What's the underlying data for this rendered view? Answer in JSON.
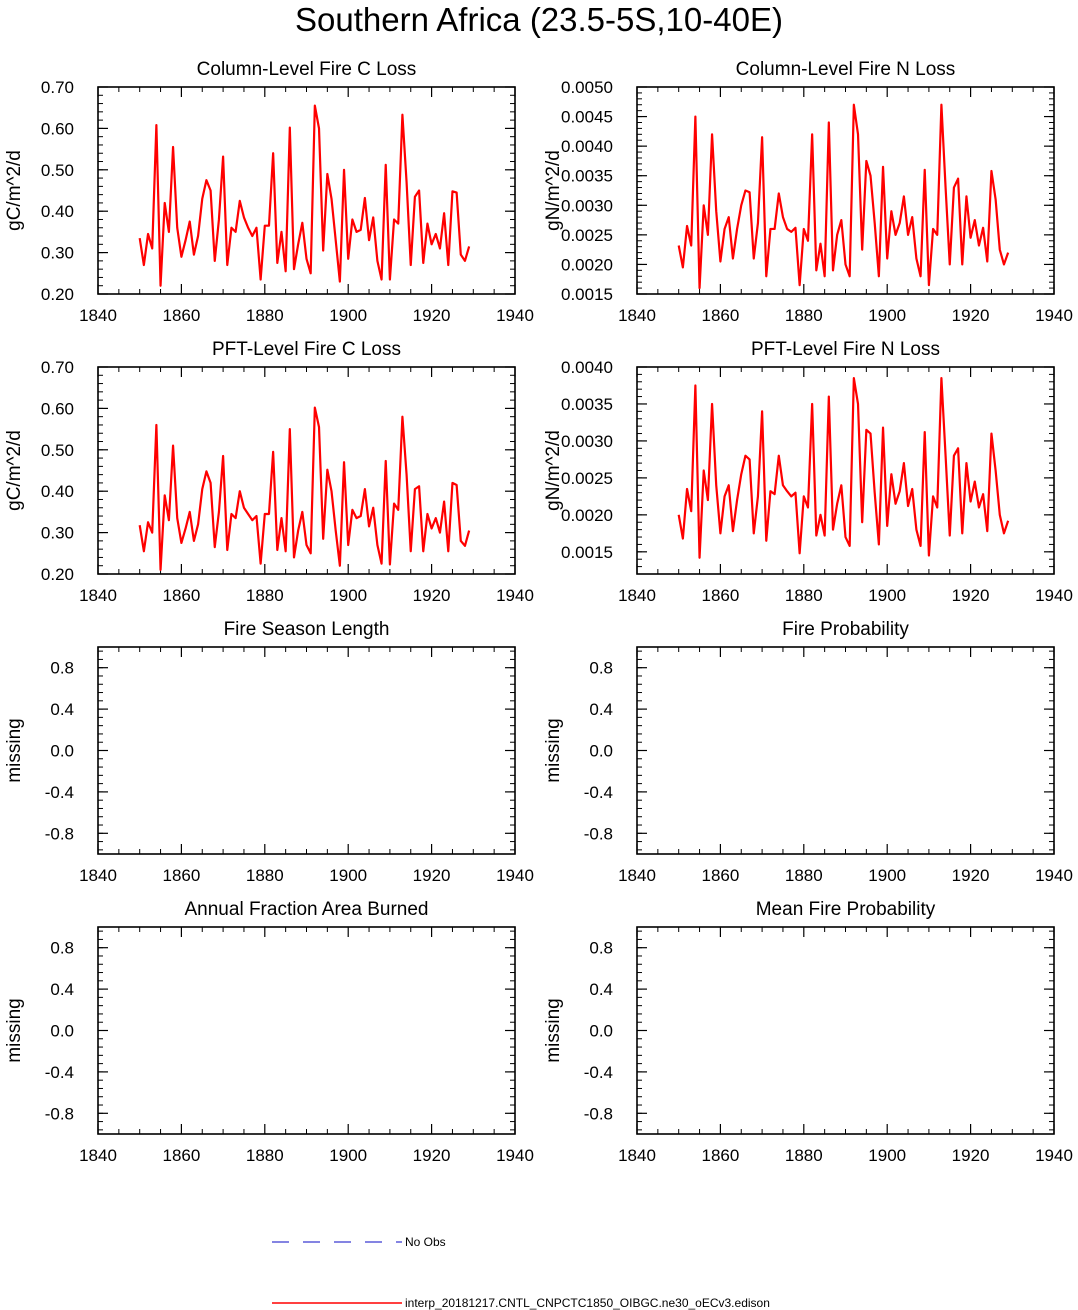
{
  "title": "Southern Africa (23.5-5S,10-40E)",
  "legend": [
    {
      "label": "No Obs",
      "color": "#3b3bd1",
      "style": "dashed"
    },
    {
      "label": "interp_20181217.CNTL_CNPCTC1850_OIBGC.ne30_oECv3.edison",
      "color": "#ff0000",
      "style": "solid"
    }
  ],
  "chart_data": [
    {
      "type": "line",
      "title": "Column-Level Fire C Loss",
      "xlabel": "",
      "ylabel": "gC/m^2/d",
      "xlim": [
        1840,
        1940
      ],
      "ylim": [
        0.2,
        0.7
      ],
      "xticks": [
        1840,
        1860,
        1880,
        1900,
        1920,
        1940
      ],
      "yticks": [
        0.2,
        0.3,
        0.4,
        0.5,
        0.6,
        0.7
      ],
      "yticklabels": [
        "0.20",
        "0.30",
        "0.40",
        "0.50",
        "0.60",
        "0.70"
      ],
      "series": [
        {
          "name": "interp_20181217.CNTL_CNPCTC1850_OIBGC.ne30_oECv3.edison",
          "color": "#ff0000",
          "x_start": 1850,
          "values": [
            0.335,
            0.27,
            0.345,
            0.31,
            0.608,
            0.22,
            0.42,
            0.35,
            0.555,
            0.36,
            0.29,
            0.33,
            0.375,
            0.295,
            0.34,
            0.43,
            0.475,
            0.45,
            0.28,
            0.38,
            0.532,
            0.27,
            0.36,
            0.35,
            0.425,
            0.385,
            0.36,
            0.34,
            0.36,
            0.235,
            0.365,
            0.365,
            0.54,
            0.275,
            0.35,
            0.255,
            0.602,
            0.26,
            0.32,
            0.372,
            0.285,
            0.25,
            0.655,
            0.6,
            0.305,
            0.49,
            0.43,
            0.33,
            0.23,
            0.5,
            0.285,
            0.38,
            0.35,
            0.355,
            0.432,
            0.33,
            0.385,
            0.28,
            0.235,
            0.512,
            0.235,
            0.38,
            0.37,
            0.633,
            0.47,
            0.27,
            0.435,
            0.45,
            0.275,
            0.37,
            0.32,
            0.345,
            0.31,
            0.395,
            0.27,
            0.448,
            0.445,
            0.295,
            0.28,
            0.315
          ]
        }
      ]
    },
    {
      "type": "line",
      "title": "Column-Level Fire N Loss",
      "xlabel": "",
      "ylabel": "gN/m^2/d",
      "xlim": [
        1840,
        1940
      ],
      "ylim": [
        0.0015,
        0.005
      ],
      "xticks": [
        1840,
        1860,
        1880,
        1900,
        1920,
        1940
      ],
      "yticks": [
        0.0015,
        0.002,
        0.0025,
        0.003,
        0.0035,
        0.004,
        0.0045,
        0.005
      ],
      "yticklabels": [
        "0.0015",
        "0.0020",
        "0.0025",
        "0.0030",
        "0.0035",
        "0.0040",
        "0.0045",
        "0.0050"
      ],
      "series": [
        {
          "name": "interp_20181217.CNTL_CNPCTC1850_OIBGC.ne30_oECv3.edison",
          "color": "#ff0000",
          "x_start": 1850,
          "values": [
            0.00232,
            0.00195,
            0.00265,
            0.00232,
            0.0045,
            0.0016,
            0.003,
            0.0025,
            0.0042,
            0.0029,
            0.00205,
            0.0026,
            0.0028,
            0.0021,
            0.0026,
            0.003,
            0.00325,
            0.00322,
            0.0021,
            0.0027,
            0.00415,
            0.0018,
            0.0026,
            0.0026,
            0.0032,
            0.0028,
            0.0026,
            0.00255,
            0.00262,
            0.00165,
            0.0026,
            0.0024,
            0.0042,
            0.0019,
            0.00235,
            0.0018,
            0.0044,
            0.0019,
            0.0025,
            0.00275,
            0.002,
            0.0018,
            0.0047,
            0.0042,
            0.00225,
            0.00375,
            0.0035,
            0.0027,
            0.0018,
            0.00365,
            0.0021,
            0.0029,
            0.0025,
            0.0027,
            0.00315,
            0.0025,
            0.0028,
            0.0021,
            0.0018,
            0.0036,
            0.00165,
            0.0026,
            0.0025,
            0.0047,
            0.0033,
            0.002,
            0.0033,
            0.00345,
            0.002,
            0.00315,
            0.00245,
            0.00275,
            0.00232,
            0.00262,
            0.00205,
            0.00358,
            0.0031,
            0.00225,
            0.002,
            0.0022
          ]
        }
      ]
    },
    {
      "type": "line",
      "title": "PFT-Level Fire C Loss",
      "xlabel": "",
      "ylabel": "gC/m^2/d",
      "xlim": [
        1840,
        1940
      ],
      "ylim": [
        0.2,
        0.7
      ],
      "xticks": [
        1840,
        1860,
        1880,
        1900,
        1920,
        1940
      ],
      "yticks": [
        0.2,
        0.3,
        0.4,
        0.5,
        0.6,
        0.7
      ],
      "yticklabels": [
        "0.20",
        "0.30",
        "0.40",
        "0.50",
        "0.60",
        "0.70"
      ],
      "series": [
        {
          "name": "interp_20181217.CNTL_CNPCTC1850_OIBGC.ne30_oECv3.edison",
          "color": "#ff0000",
          "x_start": 1850,
          "values": [
            0.318,
            0.255,
            0.325,
            0.3,
            0.56,
            0.21,
            0.39,
            0.33,
            0.51,
            0.335,
            0.275,
            0.31,
            0.35,
            0.28,
            0.32,
            0.405,
            0.448,
            0.42,
            0.265,
            0.35,
            0.485,
            0.258,
            0.345,
            0.335,
            0.4,
            0.36,
            0.345,
            0.33,
            0.34,
            0.225,
            0.345,
            0.345,
            0.495,
            0.258,
            0.335,
            0.255,
            0.55,
            0.24,
            0.305,
            0.35,
            0.27,
            0.25,
            0.602,
            0.555,
            0.285,
            0.452,
            0.4,
            0.305,
            0.22,
            0.47,
            0.27,
            0.355,
            0.335,
            0.34,
            0.405,
            0.315,
            0.36,
            0.27,
            0.225,
            0.473,
            0.223,
            0.37,
            0.355,
            0.58,
            0.44,
            0.255,
            0.405,
            0.412,
            0.255,
            0.345,
            0.31,
            0.335,
            0.3,
            0.375,
            0.255,
            0.42,
            0.415,
            0.28,
            0.268,
            0.305
          ]
        }
      ]
    },
    {
      "type": "line",
      "title": "PFT-Level Fire N Loss",
      "xlabel": "",
      "ylabel": "gN/m^2/d",
      "xlim": [
        1840,
        1940
      ],
      "ylim": [
        0.0012,
        0.004
      ],
      "xticks": [
        1840,
        1860,
        1880,
        1900,
        1920,
        1940
      ],
      "yticks": [
        0.0015,
        0.002,
        0.0025,
        0.003,
        0.0035,
        0.004
      ],
      "yticklabels": [
        "0.0015",
        "0.0020",
        "0.0025",
        "0.0030",
        "0.0035",
        "0.0040"
      ],
      "series": [
        {
          "name": "interp_20181217.CNTL_CNPCTC1850_OIBGC.ne30_oECv3.edison",
          "color": "#ff0000",
          "x_start": 1850,
          "values": [
            0.002,
            0.00168,
            0.00235,
            0.00205,
            0.00375,
            0.00142,
            0.0026,
            0.0022,
            0.0035,
            0.0024,
            0.00175,
            0.00225,
            0.0024,
            0.00178,
            0.0022,
            0.00255,
            0.0028,
            0.00275,
            0.00175,
            0.00225,
            0.0034,
            0.00165,
            0.00232,
            0.00228,
            0.0028,
            0.0024,
            0.00232,
            0.00225,
            0.0023,
            0.00148,
            0.00225,
            0.0021,
            0.0035,
            0.00172,
            0.002,
            0.00172,
            0.0036,
            0.0018,
            0.00215,
            0.0024,
            0.0017,
            0.00158,
            0.00385,
            0.0035,
            0.0019,
            0.00315,
            0.0031,
            0.0023,
            0.0016,
            0.00318,
            0.00185,
            0.00255,
            0.00215,
            0.00232,
            0.0027,
            0.00212,
            0.00235,
            0.0018,
            0.00158,
            0.00312,
            0.00145,
            0.00225,
            0.0021,
            0.00385,
            0.0028,
            0.00172,
            0.0028,
            0.0029,
            0.00175,
            0.0027,
            0.00218,
            0.00245,
            0.0021,
            0.00228,
            0.00178,
            0.0031,
            0.0026,
            0.002,
            0.00175,
            0.00192
          ]
        }
      ]
    },
    {
      "type": "line",
      "title": "Fire Season Length",
      "xlabel": "",
      "ylabel": "missing",
      "xlim": [
        1840,
        1940
      ],
      "ylim": [
        -1.0,
        1.0
      ],
      "xticks": [
        1840,
        1860,
        1880,
        1900,
        1920,
        1940
      ],
      "yticks": [
        -0.8,
        -0.4,
        0.0,
        0.4,
        0.8
      ],
      "yticklabels": [
        "-0.8",
        "-0.4",
        "0.0",
        "0.4",
        "0.8"
      ],
      "series": []
    },
    {
      "type": "line",
      "title": "Fire Probability",
      "xlabel": "",
      "ylabel": "missing",
      "xlim": [
        1840,
        1940
      ],
      "ylim": [
        -1.0,
        1.0
      ],
      "xticks": [
        1840,
        1860,
        1880,
        1900,
        1920,
        1940
      ],
      "yticks": [
        -0.8,
        -0.4,
        0.0,
        0.4,
        0.8
      ],
      "yticklabels": [
        "-0.8",
        "-0.4",
        "0.0",
        "0.4",
        "0.8"
      ],
      "series": []
    },
    {
      "type": "line",
      "title": "Annual Fraction Area Burned",
      "xlabel": "",
      "ylabel": "missing",
      "xlim": [
        1840,
        1940
      ],
      "ylim": [
        -1.0,
        1.0
      ],
      "xticks": [
        1840,
        1860,
        1880,
        1900,
        1920,
        1940
      ],
      "yticks": [
        -0.8,
        -0.4,
        0.0,
        0.4,
        0.8
      ],
      "yticklabels": [
        "-0.8",
        "-0.4",
        "0.0",
        "0.4",
        "0.8"
      ],
      "series": []
    },
    {
      "type": "line",
      "title": "Mean Fire Probability",
      "xlabel": "",
      "ylabel": "missing",
      "xlim": [
        1840,
        1940
      ],
      "ylim": [
        -1.0,
        1.0
      ],
      "xticks": [
        1840,
        1860,
        1880,
        1900,
        1920,
        1940
      ],
      "yticks": [
        -0.8,
        -0.4,
        0.0,
        0.4,
        0.8
      ],
      "yticklabels": [
        "-0.8",
        "-0.4",
        "0.0",
        "0.4",
        "0.8"
      ],
      "series": []
    }
  ]
}
